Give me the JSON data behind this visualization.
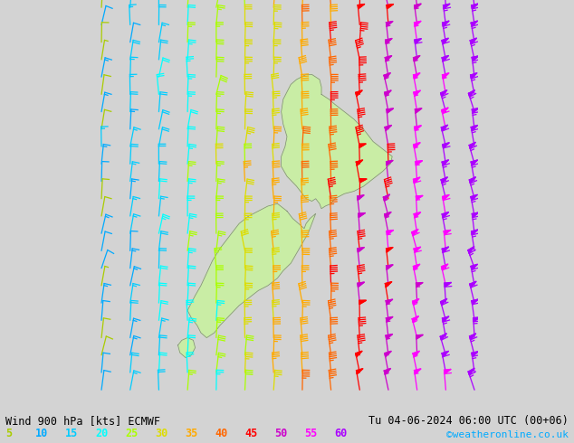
{
  "title_left": "Wind 900 hPa [kts] ECMWF",
  "title_right": "Tu 04-06-2024 06:00 UTC (00+06)",
  "credit": "©weatheronline.co.uk",
  "background_color": "#d3d3d3",
  "map_land_color": "#c8f0a0",
  "map_coast_color": "#808080",
  "legend_values": [
    5,
    10,
    15,
    20,
    25,
    30,
    35,
    40,
    45,
    50,
    55,
    60
  ],
  "legend_colors": [
    "#aacc00",
    "#00aaff",
    "#00ccff",
    "#00ffff",
    "#aaff00",
    "#dddd00",
    "#ffaa00",
    "#ff6600",
    "#ff0000",
    "#cc00cc",
    "#ff00ff",
    "#aa00ff"
  ],
  "bottom_bar_color": "#ffffff",
  "title_color": "#000000",
  "figsize": [
    6.34,
    4.9
  ],
  "dpi": 100
}
